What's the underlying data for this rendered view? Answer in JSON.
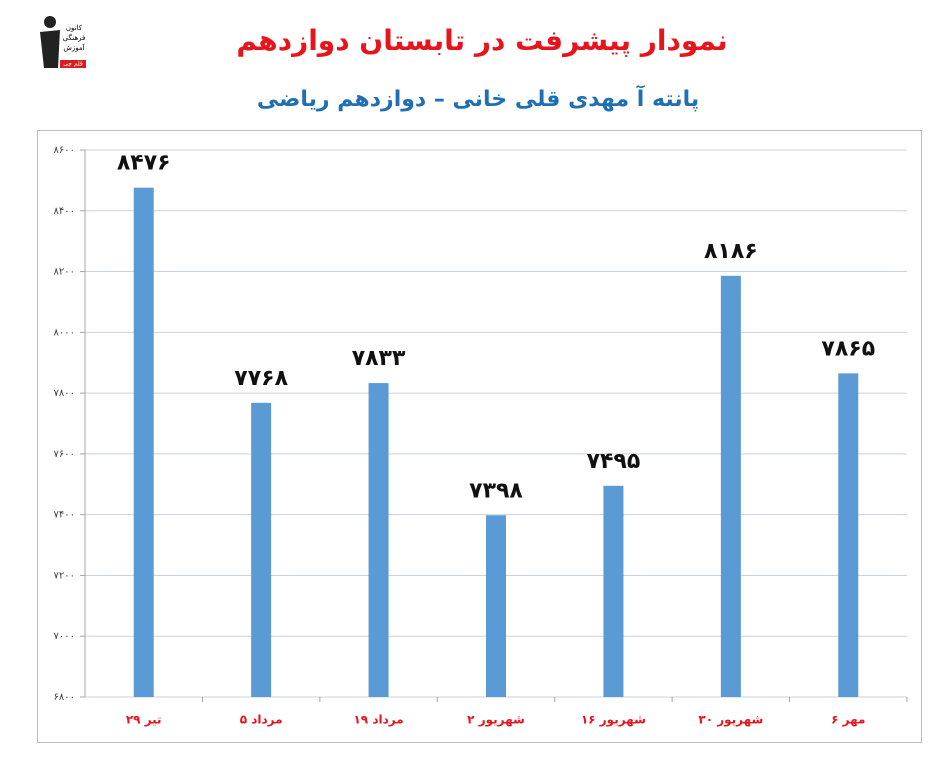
{
  "logo": {
    "lines": [
      "کانون",
      "فرهنگی",
      "آموزش",
      "قلم چی"
    ]
  },
  "chart_data": {
    "type": "bar",
    "title": "نمودار پیشرفت در تابستان دوازدهم",
    "subtitle": "پانته آ مهدی قلی خانی – دوازدهم ریاضی",
    "categories": [
      "۲۹ تیر",
      "۵ مرداد",
      "۱۹ مرداد",
      "۲ شهریور",
      "۱۶ شهریور",
      "۳۰ شهریور",
      "۶ مهر"
    ],
    "values": [
      8476,
      7768,
      7833,
      7398,
      7495,
      8186,
      7865
    ],
    "value_labels": [
      "۸۴۷۶",
      "۷۷۶۸",
      "۷۸۳۳",
      "۷۳۹۸",
      "۷۴۹۵",
      "۸۱۸۶",
      "۷۸۶۵"
    ],
    "color": "#5b9bd5",
    "ylim": [
      6800,
      8600
    ],
    "yticks": [
      {
        "value": 6800,
        "label": "۶۸۰۰"
      },
      {
        "value": 7000,
        "label": "۷۰۰۰"
      },
      {
        "value": 7200,
        "label": "۷۲۰۰"
      },
      {
        "value": 7400,
        "label": "۷۴۰۰"
      },
      {
        "value": 7600,
        "label": "۷۶۰۰"
      },
      {
        "value": 7800,
        "label": "۷۸۰۰"
      },
      {
        "value": 8000,
        "label": "۸۰۰۰"
      },
      {
        "value": 8200,
        "label": "۸۲۰۰"
      },
      {
        "value": 8400,
        "label": "۸۴۰۰"
      },
      {
        "value": 8600,
        "label": "۸۶۰۰"
      }
    ],
    "grid": true
  }
}
